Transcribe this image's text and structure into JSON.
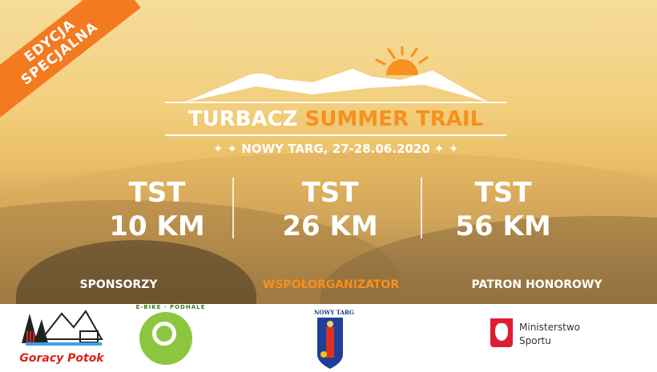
{
  "ribbon": {
    "line1": "EDYCJA",
    "line2": "SPECJALNA"
  },
  "event": {
    "title_white": "TURBACZ",
    "title_orange": "SUMMER TRAIL",
    "date_line": "✦ ✦  NOWY TARG, 27-28.06.2020  ✦ ✦"
  },
  "distances": [
    {
      "name": "TST",
      "km": "10 KM"
    },
    {
      "name": "TST",
      "km": "26 KM"
    },
    {
      "name": "TST",
      "km": "56 KM"
    }
  ],
  "labels": {
    "sponsors": "SPONSORZY",
    "coorganizer": "WSPÓŁORGANIZATOR",
    "patron": "PATRON HONOROWY"
  },
  "logos": {
    "goracy_potok": "Goracy Potok",
    "ebike": "E-BIKE · PODHALE",
    "nowy_targ": "NOWY TARG",
    "ministry_line1": "Ministerstwo",
    "ministry_line2": "Sportu"
  },
  "colors": {
    "accent": "#f7901e",
    "ribbon": "#f47a20"
  }
}
